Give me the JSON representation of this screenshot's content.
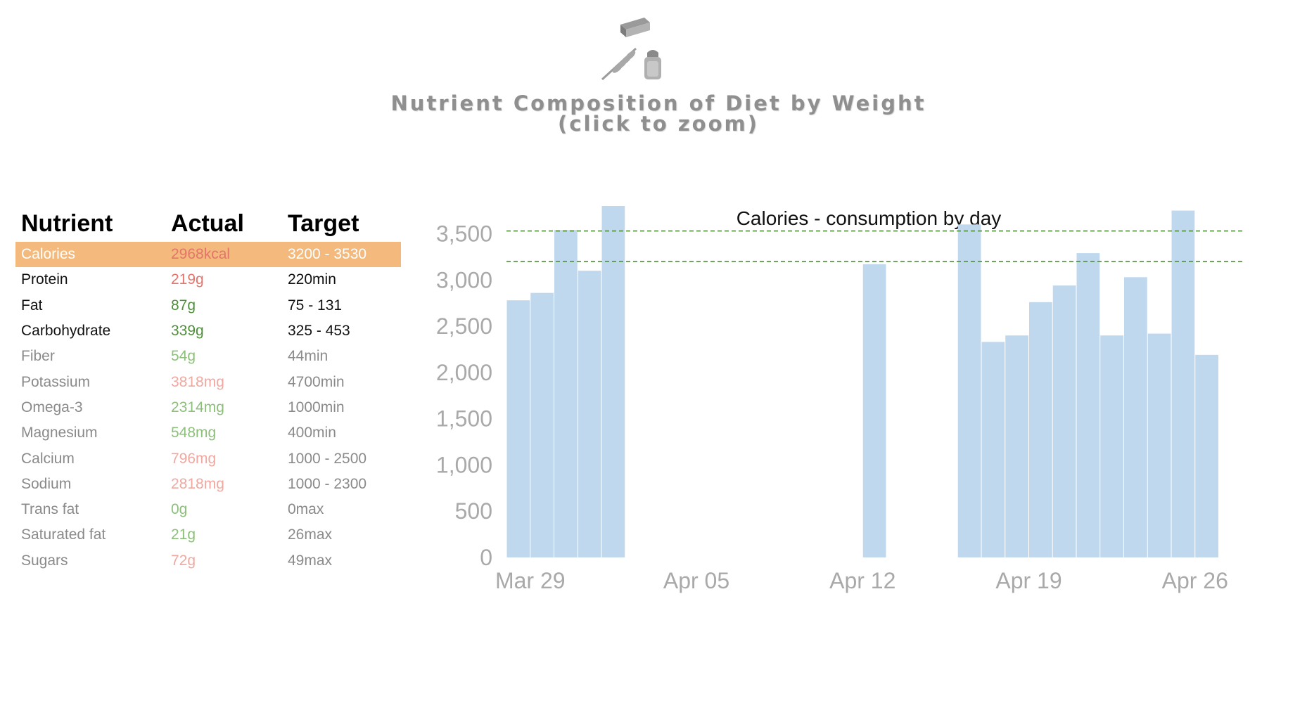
{
  "header": {
    "title_line1": "Nutrient Composition of Diet by Weight",
    "title_line2": "(click to zoom)",
    "icons": [
      "butter-icon",
      "grain-icon",
      "salt-shaker-icon"
    ]
  },
  "colors": {
    "highlight_row": "#f4b97c",
    "bar": "#c0d8ee",
    "target_line": "#4f8f3a",
    "axis_text": "#a9a9a9",
    "status_red": "#e3756b",
    "status_green": "#4f8f3a",
    "status_light_green": "#8cc07a",
    "status_light_red": "#f0a8a0",
    "status_gray": "#8a8a8a"
  },
  "table": {
    "headers": [
      "Nutrient",
      "Actual",
      "Target"
    ],
    "rows": [
      {
        "nutrient": "Calories",
        "actual": "2968kcal",
        "target": "3200 - 3530",
        "highlight": true,
        "nutrient_color": "#ffffff",
        "actual_color": "#e3756b",
        "target_color": "#ffffff"
      },
      {
        "nutrient": "Protein",
        "actual": "219g",
        "target": "220min",
        "nutrient_color": "#111111",
        "actual_color": "#e3756b",
        "target_color": "#111111"
      },
      {
        "nutrient": "Fat",
        "actual": "87g",
        "target": "75 - 131",
        "nutrient_color": "#111111",
        "actual_color": "#4f8f3a",
        "target_color": "#111111"
      },
      {
        "nutrient": "Carbohydrate",
        "actual": "339g",
        "target": "325 - 453",
        "nutrient_color": "#111111",
        "actual_color": "#4f8f3a",
        "target_color": "#111111"
      },
      {
        "nutrient": "Fiber",
        "actual": "54g",
        "target": "44min",
        "nutrient_color": "#8a8a8a",
        "actual_color": "#8cc07a",
        "target_color": "#8a8a8a"
      },
      {
        "nutrient": "Potassium",
        "actual": "3818mg",
        "target": "4700min",
        "nutrient_color": "#8a8a8a",
        "actual_color": "#f0a8a0",
        "target_color": "#8a8a8a"
      },
      {
        "nutrient": "Omega-3",
        "actual": "2314mg",
        "target": "1000min",
        "nutrient_color": "#8a8a8a",
        "actual_color": "#8cc07a",
        "target_color": "#8a8a8a"
      },
      {
        "nutrient": "Magnesium",
        "actual": "548mg",
        "target": "400min",
        "nutrient_color": "#8a8a8a",
        "actual_color": "#8cc07a",
        "target_color": "#8a8a8a"
      },
      {
        "nutrient": "Calcium",
        "actual": "796mg",
        "target": "1000 - 2500",
        "nutrient_color": "#8a8a8a",
        "actual_color": "#f0a8a0",
        "target_color": "#8a8a8a"
      },
      {
        "nutrient": "Sodium",
        "actual": "2818mg",
        "target": "1000 - 2300",
        "nutrient_color": "#8a8a8a",
        "actual_color": "#f0a8a0",
        "target_color": "#8a8a8a"
      },
      {
        "nutrient": "Trans fat",
        "actual": "0g",
        "target": "0max",
        "nutrient_color": "#8a8a8a",
        "actual_color": "#8cc07a",
        "target_color": "#8a8a8a"
      },
      {
        "nutrient": "Saturated fat",
        "actual": "21g",
        "target": "26max",
        "nutrient_color": "#8a8a8a",
        "actual_color": "#8cc07a",
        "target_color": "#8a8a8a"
      },
      {
        "nutrient": "Sugars",
        "actual": "72g",
        "target": "49max",
        "nutrient_color": "#8a8a8a",
        "actual_color": "#f0a8a0",
        "target_color": "#8a8a8a"
      }
    ]
  },
  "chart_data": {
    "type": "bar",
    "title": "Calories - consumption by day",
    "xlabel": "",
    "ylabel": "",
    "ylim": [
      0,
      3800
    ],
    "yticks": [
      0,
      500,
      1000,
      1500,
      2000,
      2500,
      3000,
      3500
    ],
    "ytick_labels": [
      "0",
      "500",
      "1,000",
      "1,500",
      "2,000",
      "2,500",
      "3,000",
      "3,500"
    ],
    "xlim": [
      "2025-03-28",
      "2025-04-29"
    ],
    "xticks": [
      {
        "date": "2025-03-29",
        "label": "Mar 29"
      },
      {
        "date": "2025-04-05",
        "label": "Apr 05"
      },
      {
        "date": "2025-04-12",
        "label": "Apr 12"
      },
      {
        "date": "2025-04-19",
        "label": "Apr 19"
      },
      {
        "date": "2025-04-26",
        "label": "Apr 26"
      }
    ],
    "reference_lines": [
      3200,
      3530
    ],
    "grid": false,
    "series": [
      {
        "values": [
          {
            "date": "2025-03-28",
            "value": 2780
          },
          {
            "date": "2025-03-29",
            "value": 2860
          },
          {
            "date": "2025-03-30",
            "value": 3540
          },
          {
            "date": "2025-03-31",
            "value": 3100
          },
          {
            "date": "2025-04-01",
            "value": 3800
          },
          {
            "date": "2025-04-12",
            "value": 3170
          },
          {
            "date": "2025-04-16",
            "value": 3600
          },
          {
            "date": "2025-04-17",
            "value": 2330
          },
          {
            "date": "2025-04-18",
            "value": 2400
          },
          {
            "date": "2025-04-19",
            "value": 2760
          },
          {
            "date": "2025-04-20",
            "value": 2940
          },
          {
            "date": "2025-04-21",
            "value": 3290
          },
          {
            "date": "2025-04-22",
            "value": 2400
          },
          {
            "date": "2025-04-23",
            "value": 3030
          },
          {
            "date": "2025-04-24",
            "value": 2420
          },
          {
            "date": "2025-04-25",
            "value": 3750
          },
          {
            "date": "2025-04-26",
            "value": 2190
          }
        ]
      }
    ]
  }
}
